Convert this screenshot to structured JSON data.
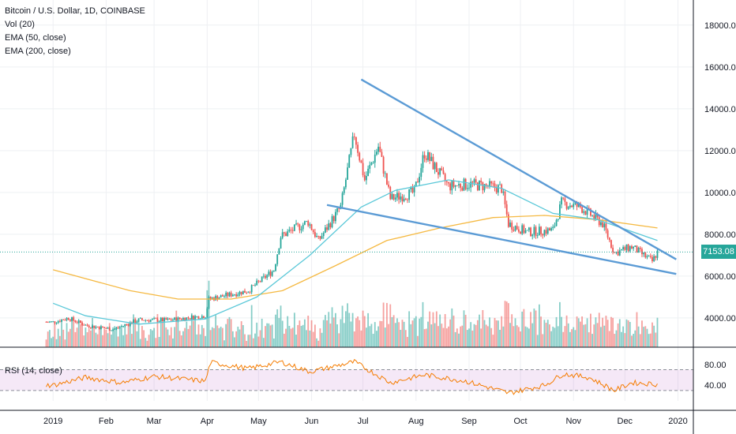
{
  "chart_data": {
    "type": "candlestick",
    "title": "Bitcoin / U.S. Dollar, 1D, COINBASE",
    "indicators": [
      "Vol (20)",
      "EMA (50, close)",
      "EMA (200, close)"
    ],
    "last_price": "7153.08",
    "price_axis": {
      "ticks": [
        "18000.00",
        "16000.00",
        "14000.00",
        "12000.00",
        "10000.00",
        "8000.00",
        "6000.00",
        "4000.00"
      ],
      "values": [
        18000,
        16000,
        14000,
        12000,
        10000,
        8000,
        6000,
        4000
      ],
      "ylim": [
        2600,
        19200
      ]
    },
    "time_axis": {
      "labels": [
        "2019",
        "Feb",
        "Mar",
        "Apr",
        "May",
        "Jun",
        "Jul",
        "Aug",
        "Sep",
        "Oct",
        "Nov",
        "Dec",
        "2020"
      ]
    },
    "price_path": [
      [
        "2019-01-01",
        3800
      ],
      [
        "2019-01-10",
        4000
      ],
      [
        "2019-01-20",
        3650
      ],
      [
        "2019-02-05",
        3450
      ],
      [
        "2019-02-20",
        3900
      ],
      [
        "2019-03-10",
        3900
      ],
      [
        "2019-03-31",
        4100
      ],
      [
        "2019-04-02",
        4900
      ],
      [
        "2019-04-25",
        5300
      ],
      [
        "2019-05-10",
        6300
      ],
      [
        "2019-05-14",
        7900
      ],
      [
        "2019-05-30",
        8600
      ],
      [
        "2019-06-05",
        7700
      ],
      [
        "2019-06-18",
        9300
      ],
      [
        "2019-06-26",
        12800
      ],
      [
        "2019-07-02",
        10600
      ],
      [
        "2019-07-10",
        12200
      ],
      [
        "2019-07-17",
        9700
      ],
      [
        "2019-07-31",
        10000
      ],
      [
        "2019-08-06",
        11900
      ],
      [
        "2019-08-20",
        10300
      ],
      [
        "2019-09-01",
        10400
      ],
      [
        "2019-09-20",
        10200
      ],
      [
        "2019-09-24",
        8500
      ],
      [
        "2019-10-05",
        8100
      ],
      [
        "2019-10-20",
        8200
      ],
      [
        "2019-10-25",
        9500
      ],
      [
        "2019-11-05",
        9300
      ],
      [
        "2019-11-18",
        8500
      ],
      [
        "2019-11-25",
        7100
      ],
      [
        "2019-12-05",
        7400
      ],
      [
        "2019-12-17",
        6700
      ],
      [
        "2019-12-20",
        7153
      ]
    ],
    "ema50_path": [
      [
        "2019-01-01",
        4700
      ],
      [
        "2019-01-20",
        4100
      ],
      [
        "2019-02-20",
        3700
      ],
      [
        "2019-03-31",
        3950
      ],
      [
        "2019-04-30",
        5000
      ],
      [
        "2019-05-31",
        7000
      ],
      [
        "2019-06-30",
        9300
      ],
      [
        "2019-07-20",
        10100
      ],
      [
        "2019-08-20",
        10600
      ],
      [
        "2019-09-20",
        10200
      ],
      [
        "2019-10-20",
        9000
      ],
      [
        "2019-11-15",
        8700
      ],
      [
        "2019-12-20",
        7700
      ]
    ],
    "ema200_path": [
      [
        "2019-01-01",
        6300
      ],
      [
        "2019-02-15",
        5300
      ],
      [
        "2019-03-15",
        4900
      ],
      [
        "2019-04-15",
        4900
      ],
      [
        "2019-05-15",
        5300
      ],
      [
        "2019-06-15",
        6500
      ],
      [
        "2019-07-15",
        7700
      ],
      [
        "2019-08-15",
        8300
      ],
      [
        "2019-09-15",
        8800
      ],
      [
        "2019-10-15",
        8900
      ],
      [
        "2019-11-15",
        8700
      ],
      [
        "2019-12-20",
        8300
      ]
    ],
    "trendlines": [
      {
        "from": [
          "2019-06-30",
          15400
        ],
        "to": [
          "2019-12-31",
          6800
        ]
      },
      {
        "from": [
          "2019-06-10",
          9400
        ],
        "to": [
          "2019-12-31",
          6100
        ]
      }
    ],
    "rsi": {
      "label": "RSI (14, close)",
      "ticks": [
        "80.00",
        "40.00"
      ],
      "tick_values": [
        80,
        40
      ],
      "upper": 70,
      "lower": 30,
      "ylim": [
        10,
        95
      ],
      "path": [
        [
          "2019-01-01",
          40
        ],
        [
          "2019-01-20",
          55
        ],
        [
          "2019-02-10",
          45
        ],
        [
          "2019-03-01",
          57
        ],
        [
          "2019-03-31",
          48
        ],
        [
          "2019-04-03",
          84
        ],
        [
          "2019-04-25",
          72
        ],
        [
          "2019-05-14",
          85
        ],
        [
          "2019-05-31",
          66
        ],
        [
          "2019-06-26",
          85
        ],
        [
          "2019-07-17",
          45
        ],
        [
          "2019-08-06",
          60
        ],
        [
          "2019-08-30",
          48
        ],
        [
          "2019-09-24",
          25
        ],
        [
          "2019-10-15",
          40
        ],
        [
          "2019-10-26",
          62
        ],
        [
          "2019-11-10",
          55
        ],
        [
          "2019-11-25",
          30
        ],
        [
          "2019-12-05",
          45
        ],
        [
          "2019-12-20",
          42
        ]
      ]
    }
  }
}
